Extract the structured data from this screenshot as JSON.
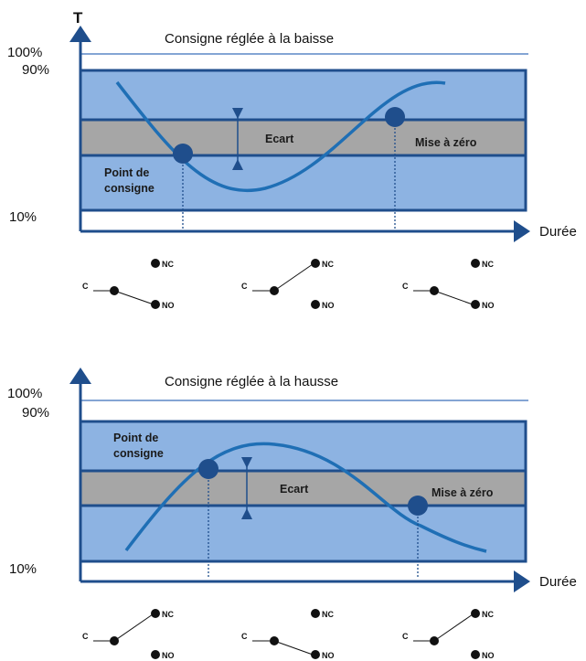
{
  "colors": {
    "axis": "#1f4e8c",
    "band_fill": "#8db3e2",
    "band_stroke": "#1f4e8c",
    "gray_band": "#a6a6a6",
    "curve": "#1f6fb5",
    "marker": "#1f4e8c",
    "ref_line": "#5b87c5"
  },
  "icons": {
    "arrow": "arrow-head-icon",
    "marker": "circle-marker-icon",
    "contact": "dot-icon"
  },
  "labels": {
    "t_axis": "T",
    "pct_100": "100%",
    "pct_90": "90%",
    "pct_10": "10%",
    "duree": "Durée",
    "ecart": "Ecart",
    "mise_a_zero": "Mise à zéro",
    "point_de_consigne_line1": "Point de",
    "point_de_consigne_line2": "consigne",
    "c": "C",
    "nc": "NC",
    "no": "NO"
  },
  "diagrams": [
    {
      "title": "Consigne réglée à la baisse",
      "switches": [
        "NO",
        "NC",
        "NO"
      ]
    },
    {
      "title": "Consigne réglée à la hausse",
      "switches": [
        "NC",
        "NO",
        "NC"
      ]
    }
  ]
}
